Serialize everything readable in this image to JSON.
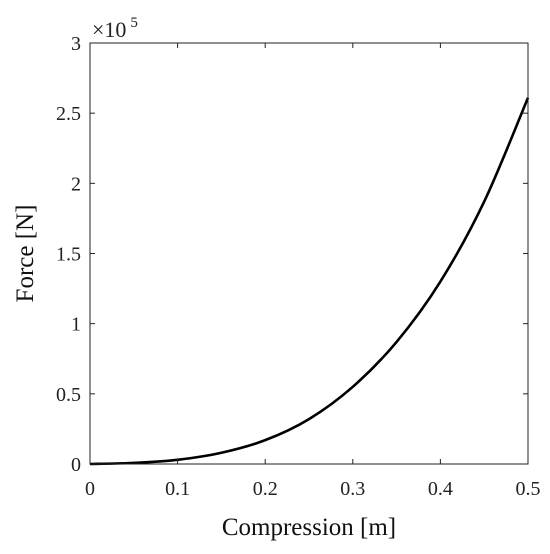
{
  "chart_data": {
    "type": "line",
    "title": "",
    "xlabel": "Compression [m]",
    "ylabel": "Force [N]",
    "xlim": [
      0,
      0.5
    ],
    "ylim": [
      0,
      300000
    ],
    "x_ticks": [
      0,
      0.1,
      0.2,
      0.3,
      0.4,
      0.5
    ],
    "x_tick_labels": [
      "0",
      "0.1",
      "0.2",
      "0.3",
      "0.4",
      "0.5"
    ],
    "y_ticks": [
      0,
      50000,
      100000,
      150000,
      200000,
      250000,
      300000
    ],
    "y_tick_labels": [
      "0",
      "0.5",
      "1",
      "1.5",
      "2",
      "2.5",
      "3"
    ],
    "y_multiplier": {
      "base": "×10",
      "exponent": "5"
    },
    "grid": false,
    "line_color": "#000000",
    "series": [
      {
        "x": [
          0,
          0.05,
          0.1,
          0.15,
          0.2,
          0.25,
          0.3,
          0.35,
          0.4,
          0.45,
          0.5
        ],
        "y": [
          0,
          800,
          3000,
          8000,
          17000,
          32000,
          55000,
          87000,
          130000,
          187000,
          261000
        ]
      }
    ]
  }
}
